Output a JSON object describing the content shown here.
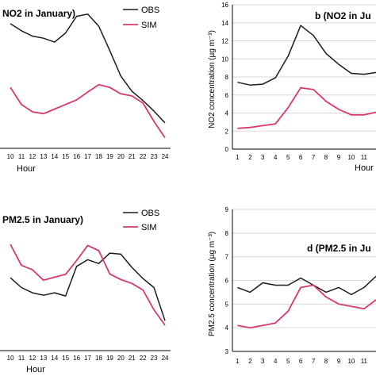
{
  "colors": {
    "obs": "#1a1a1a",
    "sim": "#d8396a",
    "axis": "#000000",
    "grid": "#d9d9d9"
  },
  "chart_data": [
    {
      "type": "line",
      "title": "NO2 in January)",
      "xlabel": "Hour",
      "ylabel": "",
      "x_ticks": [
        "10",
        "11",
        "12",
        "13",
        "14",
        "15",
        "16",
        "17",
        "18",
        "19",
        "20",
        "21",
        "22",
        "23",
        "24"
      ],
      "x": [
        10,
        11,
        12,
        13,
        14,
        15,
        16,
        17,
        18,
        19,
        20,
        21,
        22,
        23,
        24
      ],
      "xlim": [
        8.7,
        24.5
      ],
      "ylim": [
        0.95,
        5.05
      ],
      "grid": true,
      "legend": "top-right",
      "series": [
        {
          "name": "OBS",
          "color_key": "obs",
          "values": [
            4.47,
            4.27,
            4.12,
            4.06,
            3.95,
            4.21,
            4.68,
            4.74,
            4.4,
            3.71,
            2.99,
            2.56,
            2.3,
            2.0,
            1.67
          ]
        },
        {
          "name": "SIM",
          "color_key": "sim",
          "values": [
            2.67,
            2.19,
            1.98,
            1.93,
            2.06,
            2.19,
            2.32,
            2.54,
            2.75,
            2.67,
            2.49,
            2.43,
            2.23,
            1.71,
            1.25
          ]
        }
      ]
    },
    {
      "type": "line",
      "title": "b (NO2 in Ju",
      "xlabel": "Hour",
      "ylabel": "NO2 concentration (µg m⁻³)",
      "y_ticks": [
        "0",
        "2",
        "4",
        "6",
        "8",
        "10",
        "12",
        "14",
        "16"
      ],
      "x_ticks": [
        "1",
        "2",
        "3",
        "4",
        "5",
        "6",
        "7",
        "8",
        "9",
        "10",
        "11"
      ],
      "x": [
        1,
        2,
        3,
        4,
        5,
        6,
        7,
        8,
        9,
        10,
        11,
        12
      ],
      "xlim": [
        0.6,
        12.2
      ],
      "ylim": [
        0,
        16
      ],
      "grid": true,
      "series": [
        {
          "color_key": "obs",
          "values": [
            7.4,
            7.1,
            7.2,
            7.9,
            10.3,
            13.7,
            12.6,
            10.6,
            9.4,
            8.4,
            8.3,
            8.5
          ]
        },
        {
          "color_key": "sim",
          "values": [
            2.3,
            2.4,
            2.6,
            2.8,
            4.6,
            6.8,
            6.6,
            5.3,
            4.4,
            3.8,
            3.8,
            4.1
          ]
        }
      ]
    },
    {
      "type": "line",
      "title": "PM2.5 in January)",
      "xlabel": "Hour",
      "ylabel": "",
      "x_ticks": [
        "10",
        "11",
        "12",
        "13",
        "14",
        "15",
        "16",
        "17",
        "18",
        "19",
        "20",
        "21",
        "22",
        "23",
        "24"
      ],
      "x": [
        10,
        11,
        12,
        13,
        14,
        15,
        16,
        17,
        18,
        19,
        20,
        21,
        22,
        23,
        24
      ],
      "xlim": [
        8.7,
        24.5
      ],
      "ylim": [
        0.95,
        5.05
      ],
      "grid": true,
      "legend": "top-right",
      "series": [
        {
          "name": "OBS",
          "color_key": "obs",
          "values": [
            3.04,
            2.76,
            2.61,
            2.54,
            2.61,
            2.52,
            3.37,
            3.56,
            3.45,
            3.75,
            3.72,
            3.34,
            3.02,
            2.76,
            1.81
          ]
        },
        {
          "name": "SIM",
          "color_key": "sim",
          "values": [
            4.0,
            3.4,
            3.27,
            2.97,
            3.06,
            3.14,
            3.54,
            3.97,
            3.82,
            3.15,
            2.99,
            2.88,
            2.69,
            2.12,
            1.68
          ]
        }
      ]
    },
    {
      "type": "line",
      "title": "d (PM2.5 in Ju",
      "xlabel": "",
      "ylabel": "PM2.5 concentration (µg m⁻³)",
      "y_ticks": [
        "3",
        "4",
        "5",
        "6",
        "7",
        "8",
        "9"
      ],
      "x_ticks": [
        "1",
        "2",
        "3",
        "4",
        "5",
        "6",
        "7",
        "8",
        "9",
        "10",
        "11"
      ],
      "x": [
        1,
        2,
        3,
        4,
        5,
        6,
        7,
        8,
        9,
        10,
        11,
        12
      ],
      "xlim": [
        0.6,
        12.2
      ],
      "ylim": [
        3,
        9
      ],
      "grid": true,
      "series": [
        {
          "color_key": "obs",
          "values": [
            5.7,
            5.5,
            5.9,
            5.8,
            5.8,
            6.1,
            5.8,
            5.5,
            5.7,
            5.4,
            5.7,
            6.2
          ]
        },
        {
          "color_key": "sim",
          "values": [
            4.1,
            4.0,
            4.1,
            4.2,
            4.7,
            5.7,
            5.8,
            5.3,
            5.0,
            4.9,
            4.8,
            5.2
          ]
        }
      ]
    }
  ]
}
